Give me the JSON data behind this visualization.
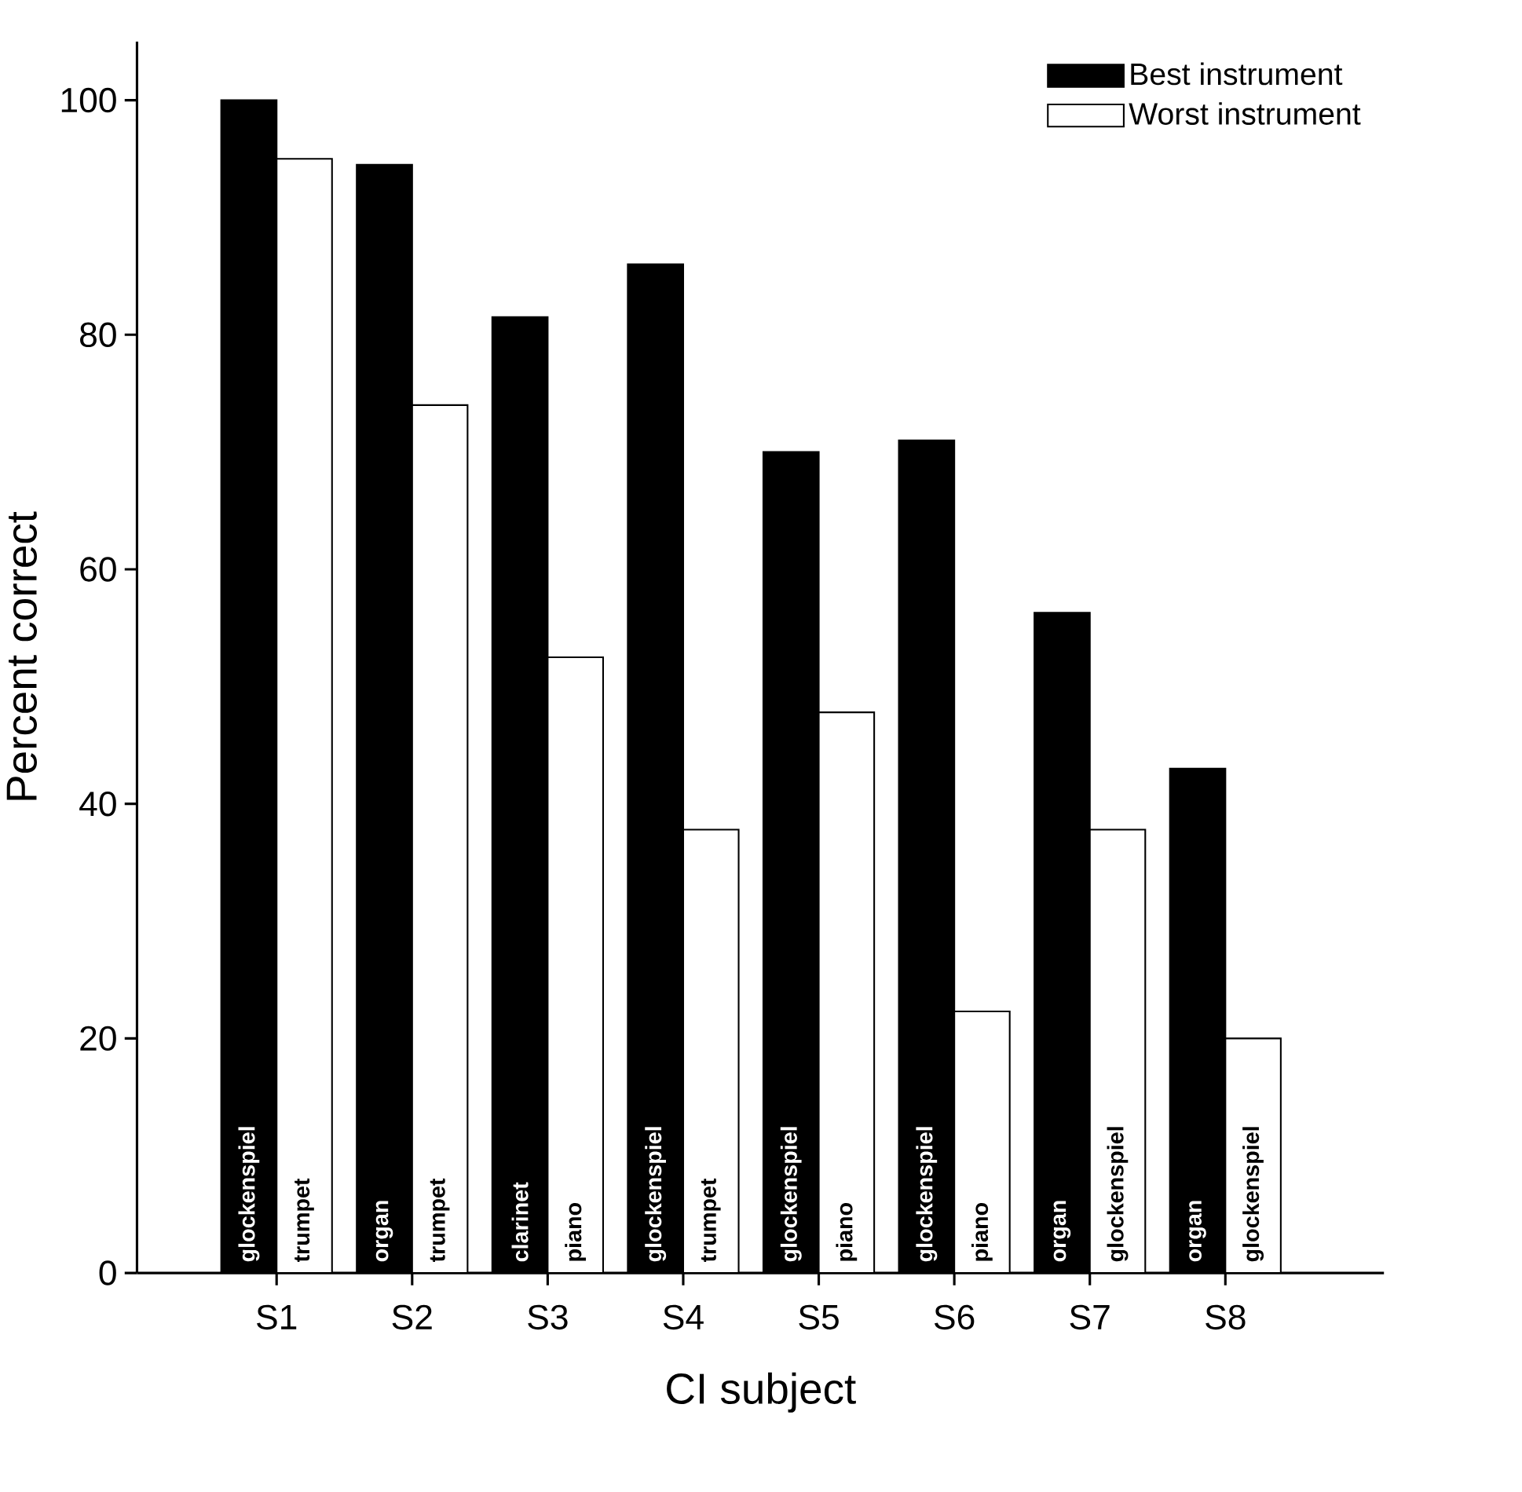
{
  "chart_data": {
    "type": "bar",
    "xlabel": "CI subject",
    "ylabel": "Percent correct",
    "categories": [
      "S1",
      "S2",
      "S3",
      "S4",
      "S5",
      "S6",
      "S7",
      "S8"
    ],
    "series": [
      {
        "name": "Best instrument",
        "color": "#000000",
        "values": [
          100,
          94.5,
          81.5,
          86,
          70,
          71,
          56.3,
          43
        ],
        "value_labels": [
          "glockenspiel",
          "organ",
          "clarinet",
          "glockenspiel",
          "glockenspiel",
          "glockenspiel",
          "organ",
          "organ"
        ]
      },
      {
        "name": "Worst instrument",
        "color": "#ffffff",
        "values": [
          95,
          74,
          52.5,
          37.8,
          47.8,
          22.3,
          37.8,
          20
        ],
        "value_labels": [
          "trumpet",
          "trumpet",
          "piano",
          "trumpet",
          "piano",
          "piano",
          "glockenspiel",
          "glockenspiel"
        ]
      }
    ],
    "ylim": [
      0,
      105
    ],
    "yticks": [
      0,
      20,
      40,
      60,
      80,
      100
    ],
    "grid": false,
    "legend": "top right"
  }
}
